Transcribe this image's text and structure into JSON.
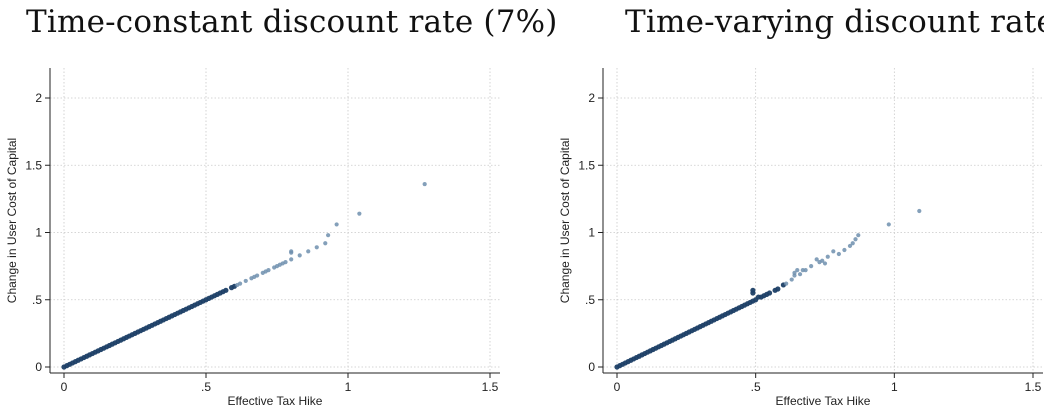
{
  "chart_data": [
    {
      "type": "scatter",
      "title": "Time-constant discount rate (7%)",
      "xlabel": "Effective Tax Hike",
      "ylabel": "Change in User Cost of Capital",
      "xlim": [
        0,
        1.5
      ],
      "ylim": [
        0,
        2
      ],
      "xticks": [
        0,
        0.5,
        1,
        1.5
      ],
      "xtick_labels": [
        "0",
        ".5",
        "1",
        "1.5"
      ],
      "yticks": [
        0,
        0.5,
        1,
        1.5,
        2
      ],
      "ytick_labels": [
        "0",
        ".5",
        "1",
        "1.5",
        "2"
      ],
      "grid": true,
      "colors": {
        "dense": "#1c3f66",
        "sparse": "#6f8fae"
      },
      "series": [
        {
          "points": [
            [
              0.0,
              0.0
            ],
            [
              0.01,
              0.01
            ],
            [
              0.02,
              0.02
            ],
            [
              0.03,
              0.03
            ],
            [
              0.04,
              0.04
            ],
            [
              0.05,
              0.05
            ],
            [
              0.06,
              0.06
            ],
            [
              0.07,
              0.07
            ],
            [
              0.08,
              0.08
            ],
            [
              0.09,
              0.09
            ],
            [
              0.1,
              0.1
            ],
            [
              0.11,
              0.11
            ],
            [
              0.12,
              0.12
            ],
            [
              0.13,
              0.13
            ],
            [
              0.14,
              0.14
            ],
            [
              0.15,
              0.15
            ],
            [
              0.16,
              0.16
            ],
            [
              0.17,
              0.17
            ],
            [
              0.18,
              0.18
            ],
            [
              0.19,
              0.19
            ],
            [
              0.2,
              0.2
            ],
            [
              0.21,
              0.21
            ],
            [
              0.22,
              0.22
            ],
            [
              0.23,
              0.23
            ],
            [
              0.24,
              0.24
            ],
            [
              0.25,
              0.25
            ],
            [
              0.26,
              0.26
            ],
            [
              0.27,
              0.27
            ],
            [
              0.28,
              0.28
            ],
            [
              0.29,
              0.29
            ],
            [
              0.3,
              0.3
            ],
            [
              0.31,
              0.31
            ],
            [
              0.32,
              0.32
            ],
            [
              0.33,
              0.33
            ],
            [
              0.34,
              0.34
            ],
            [
              0.35,
              0.35
            ],
            [
              0.36,
              0.36
            ],
            [
              0.37,
              0.37
            ],
            [
              0.38,
              0.38
            ],
            [
              0.39,
              0.39
            ],
            [
              0.4,
              0.4
            ],
            [
              0.41,
              0.41
            ],
            [
              0.42,
              0.42
            ],
            [
              0.43,
              0.43
            ],
            [
              0.44,
              0.44
            ],
            [
              0.45,
              0.45
            ],
            [
              0.46,
              0.46
            ],
            [
              0.47,
              0.47
            ],
            [
              0.48,
              0.48
            ],
            [
              0.49,
              0.49
            ],
            [
              0.5,
              0.5
            ],
            [
              0.51,
              0.51
            ],
            [
              0.52,
              0.52
            ],
            [
              0.53,
              0.53
            ],
            [
              0.54,
              0.54
            ],
            [
              0.55,
              0.55
            ],
            [
              0.56,
              0.56
            ],
            [
              0.57,
              0.57
            ],
            [
              0.59,
              0.59
            ],
            [
              0.6,
              0.6
            ],
            [
              0.61,
              0.61
            ],
            [
              0.62,
              0.62
            ],
            [
              0.64,
              0.64
            ],
            [
              0.66,
              0.66
            ],
            [
              0.67,
              0.67
            ],
            [
              0.68,
              0.68
            ],
            [
              0.7,
              0.7
            ],
            [
              0.71,
              0.71
            ],
            [
              0.72,
              0.72
            ],
            [
              0.74,
              0.74
            ],
            [
              0.75,
              0.75
            ],
            [
              0.76,
              0.76
            ],
            [
              0.77,
              0.77
            ],
            [
              0.78,
              0.78
            ],
            [
              0.8,
              0.8
            ],
            [
              0.8,
              0.85
            ],
            [
              0.8,
              0.86
            ],
            [
              0.83,
              0.83
            ],
            [
              0.86,
              0.86
            ],
            [
              0.89,
              0.89
            ],
            [
              0.92,
              0.92
            ],
            [
              0.93,
              0.98
            ],
            [
              0.96,
              1.06
            ],
            [
              1.04,
              1.14
            ],
            [
              1.27,
              1.36
            ]
          ]
        }
      ]
    },
    {
      "type": "scatter",
      "title": "Time-varying discount rate",
      "xlabel": "Effective Tax Hike",
      "ylabel": "Change in User Cost of Capital",
      "xlim": [
        0,
        1.5
      ],
      "ylim": [
        0,
        2
      ],
      "xticks": [
        0,
        0.5,
        1,
        1.5
      ],
      "xtick_labels": [
        "0",
        ".5",
        "1",
        "1.5"
      ],
      "yticks": [
        0,
        0.5,
        1,
        1.5,
        2
      ],
      "ytick_labels": [
        "0",
        ".5",
        "1",
        "1.5",
        "2"
      ],
      "grid": true,
      "colors": {
        "dense": "#1c3f66",
        "sparse": "#6f8fae"
      },
      "series": [
        {
          "points": [
            [
              0.0,
              0.0
            ],
            [
              0.01,
              0.01
            ],
            [
              0.02,
              0.02
            ],
            [
              0.03,
              0.03
            ],
            [
              0.04,
              0.04
            ],
            [
              0.05,
              0.05
            ],
            [
              0.06,
              0.06
            ],
            [
              0.07,
              0.07
            ],
            [
              0.08,
              0.08
            ],
            [
              0.09,
              0.09
            ],
            [
              0.1,
              0.1
            ],
            [
              0.11,
              0.11
            ],
            [
              0.12,
              0.12
            ],
            [
              0.13,
              0.13
            ],
            [
              0.14,
              0.14
            ],
            [
              0.15,
              0.15
            ],
            [
              0.16,
              0.16
            ],
            [
              0.17,
              0.17
            ],
            [
              0.18,
              0.18
            ],
            [
              0.19,
              0.19
            ],
            [
              0.2,
              0.2
            ],
            [
              0.21,
              0.21
            ],
            [
              0.22,
              0.22
            ],
            [
              0.23,
              0.23
            ],
            [
              0.24,
              0.24
            ],
            [
              0.25,
              0.25
            ],
            [
              0.26,
              0.26
            ],
            [
              0.27,
              0.27
            ],
            [
              0.28,
              0.28
            ],
            [
              0.29,
              0.29
            ],
            [
              0.3,
              0.3
            ],
            [
              0.31,
              0.31
            ],
            [
              0.32,
              0.32
            ],
            [
              0.33,
              0.33
            ],
            [
              0.34,
              0.34
            ],
            [
              0.35,
              0.35
            ],
            [
              0.36,
              0.36
            ],
            [
              0.37,
              0.37
            ],
            [
              0.38,
              0.38
            ],
            [
              0.39,
              0.39
            ],
            [
              0.4,
              0.4
            ],
            [
              0.41,
              0.41
            ],
            [
              0.42,
              0.42
            ],
            [
              0.43,
              0.43
            ],
            [
              0.44,
              0.44
            ],
            [
              0.45,
              0.45
            ],
            [
              0.46,
              0.46
            ],
            [
              0.47,
              0.47
            ],
            [
              0.48,
              0.48
            ],
            [
              0.49,
              0.49
            ],
            [
              0.49,
              0.55
            ],
            [
              0.49,
              0.57
            ],
            [
              0.5,
              0.5
            ],
            [
              0.51,
              0.52
            ],
            [
              0.52,
              0.52
            ],
            [
              0.53,
              0.53
            ],
            [
              0.54,
              0.54
            ],
            [
              0.55,
              0.55
            ],
            [
              0.57,
              0.57
            ],
            [
              0.58,
              0.58
            ],
            [
              0.6,
              0.61
            ],
            [
              0.61,
              0.62
            ],
            [
              0.63,
              0.65
            ],
            [
              0.64,
              0.68
            ],
            [
              0.64,
              0.7
            ],
            [
              0.65,
              0.72
            ],
            [
              0.67,
              0.72
            ],
            [
              0.66,
              0.69
            ],
            [
              0.68,
              0.72
            ],
            [
              0.7,
              0.75
            ],
            [
              0.72,
              0.8
            ],
            [
              0.73,
              0.78
            ],
            [
              0.74,
              0.79
            ],
            [
              0.75,
              0.77
            ],
            [
              0.76,
              0.82
            ],
            [
              0.78,
              0.86
            ],
            [
              0.8,
              0.84
            ],
            [
              0.82,
              0.87
            ],
            [
              0.84,
              0.9
            ],
            [
              0.85,
              0.92
            ],
            [
              0.86,
              0.95
            ],
            [
              0.87,
              0.98
            ],
            [
              0.98,
              1.06
            ],
            [
              1.09,
              1.16
            ]
          ]
        }
      ]
    }
  ]
}
